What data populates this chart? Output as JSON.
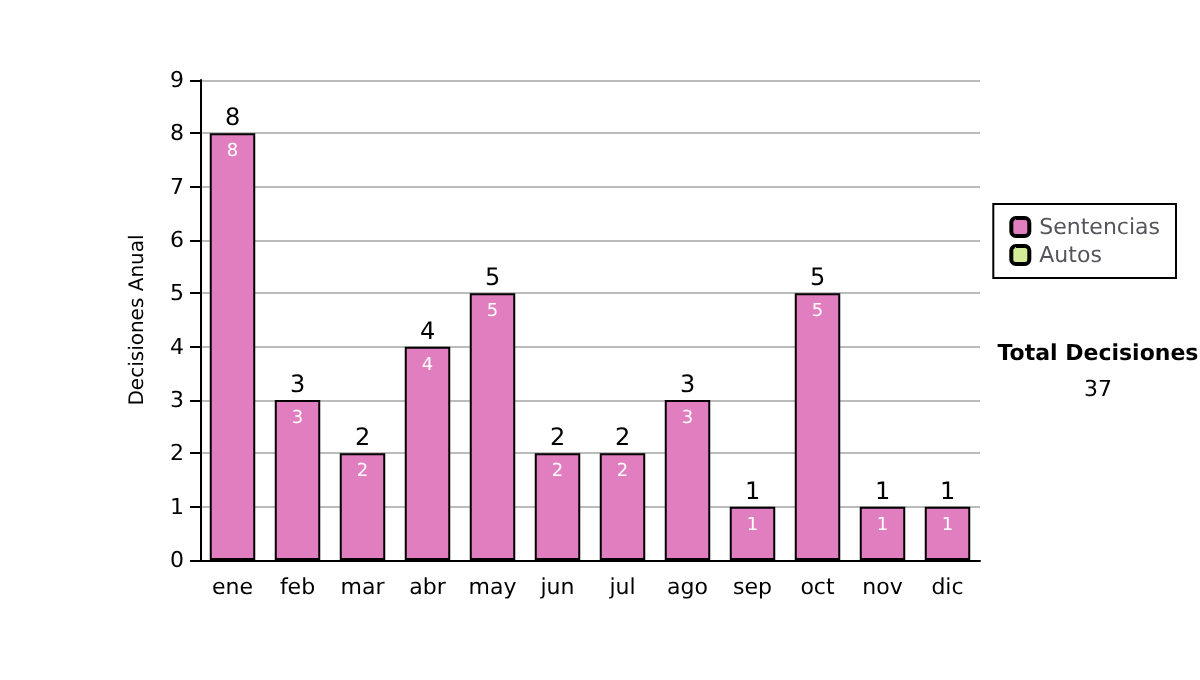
{
  "chart_data": {
    "type": "bar",
    "ylabel": "Decisiones Anual",
    "categories": [
      "ene",
      "feb",
      "mar",
      "abr",
      "may",
      "jun",
      "jul",
      "ago",
      "sep",
      "oct",
      "nov",
      "dic"
    ],
    "series": [
      {
        "name": "Sentencias",
        "color": "#e07ec0",
        "values": [
          8,
          3,
          2,
          4,
          5,
          2,
          2,
          3,
          1,
          5,
          1,
          1
        ]
      },
      {
        "name": "Autos",
        "color": "#d4ec98",
        "values": [
          null,
          null,
          null,
          null,
          null,
          null,
          null,
          null,
          null,
          null,
          null,
          null
        ]
      }
    ],
    "stacked": true,
    "data_labels": true,
    "totals": [
      "8",
      "3",
      "2",
      "4",
      "5",
      "2",
      "2",
      "3",
      "1",
      "5",
      "1",
      "1"
    ],
    "ylim": [
      0,
      9
    ],
    "yticks": [
      0,
      1,
      2,
      3,
      4,
      5,
      6,
      7,
      8,
      9
    ],
    "grid": "y",
    "legend": "right",
    "annotations": [
      "Total Decisiones",
      "37"
    ]
  }
}
